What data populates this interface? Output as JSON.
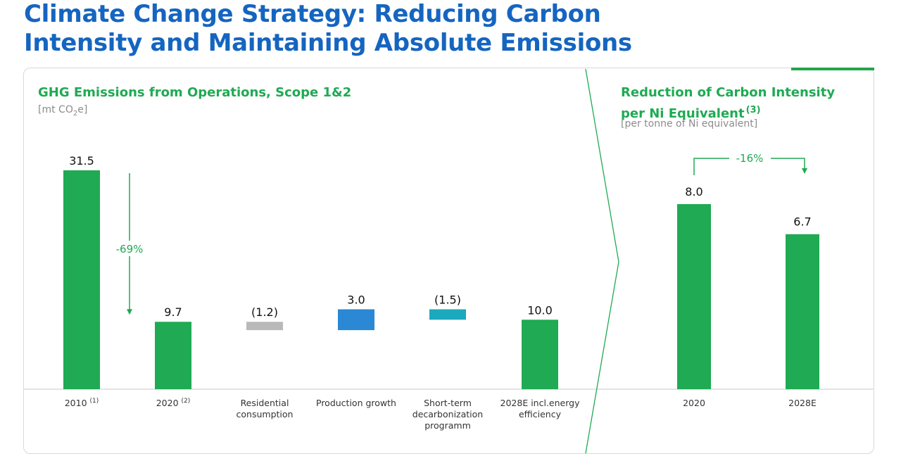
{
  "page": {
    "title_line1": "Climate Change Strategy: Reducing Carbon",
    "title_line2": "Intensity and Maintaining Absolute Emissions"
  },
  "colors": {
    "title_blue": "#1565c0",
    "accent_green": "#22a64a",
    "bar_green": "#1faa53",
    "bar_gray": "#b9b9b9",
    "bar_blue": "#2a88d4",
    "bar_teal": "#1aa9bd",
    "axis_line": "#c8c8c8",
    "divider": "#1faa53"
  },
  "chart_data": [
    {
      "type": "bar",
      "subtype": "waterfall",
      "title": "GHG Emissions from Operations, Scope 1&2",
      "unit_prefix": "[mt CO",
      "unit_sub": "2",
      "unit_suffix": "e]",
      "categories": [
        {
          "label_lines": [
            "2010"
          ],
          "note": "(1)"
        },
        {
          "label_lines": [
            "2020"
          ],
          "note": "(2)"
        },
        {
          "label_lines": [
            "Residential",
            "consumption"
          ],
          "note": ""
        },
        {
          "label_lines": [
            "Production growth"
          ],
          "note": ""
        },
        {
          "label_lines": [
            "Short-term",
            "decarbonization",
            "programm"
          ],
          "note": ""
        },
        {
          "label_lines": [
            "2028E incl.energy",
            "efficiency"
          ],
          "note": ""
        }
      ],
      "bars": [
        {
          "kind": "total",
          "value": 31.5,
          "label": "31.5",
          "color": "#1faa53"
        },
        {
          "kind": "total",
          "value": 9.7,
          "label": "9.7",
          "color": "#1faa53"
        },
        {
          "kind": "delta",
          "value": -1.2,
          "label": "(1.2)",
          "color": "#b9b9b9"
        },
        {
          "kind": "delta",
          "value": 3.0,
          "label": "3.0",
          "color": "#2a88d4"
        },
        {
          "kind": "delta",
          "value": -1.5,
          "label": "(1.5)",
          "color": "#1aa9bd"
        },
        {
          "kind": "total",
          "value": 10.0,
          "label": "10.0",
          "color": "#1faa53"
        }
      ],
      "ylim": [
        0,
        33
      ],
      "annotation": {
        "text": "-69%",
        "from_category": 0,
        "to_category": 1,
        "color": "#1faa53"
      }
    },
    {
      "type": "bar",
      "title_line1": "Reduction of Carbon Intensity",
      "title_line2": "per Ni Equivalent",
      "title_note": "(3)",
      "unit": "[per tonne of Ni equivalent]",
      "categories": [
        "2020",
        "2028E"
      ],
      "values": [
        8.0,
        6.7
      ],
      "value_labels": [
        "8.0",
        "6.7"
      ],
      "color": "#1faa53",
      "ylim": [
        0,
        8.9
      ],
      "annotation": {
        "text": "-16%",
        "from_category": 0,
        "to_category": 1,
        "color": "#1faa53"
      }
    }
  ]
}
